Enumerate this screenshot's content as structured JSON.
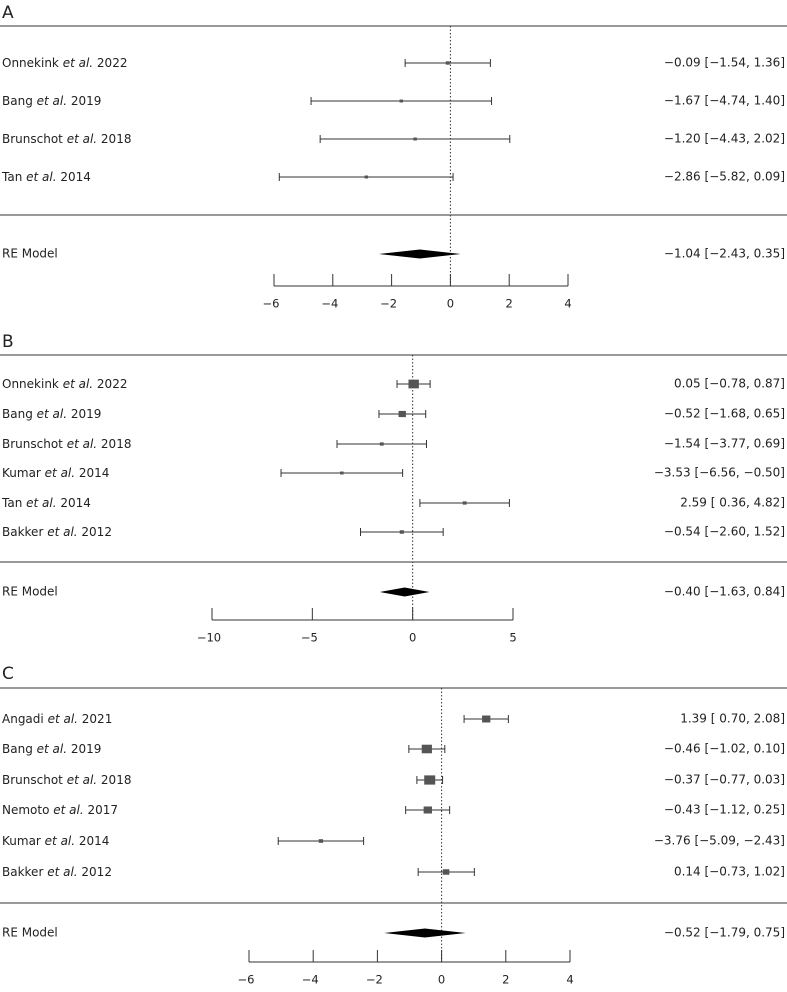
{
  "chart_data": [
    {
      "type": "forest",
      "panel": "A",
      "xlim": [
        -6,
        4
      ],
      "ticks": [
        -6,
        -4,
        -2,
        0,
        2,
        4
      ],
      "reference_line": 0,
      "studies": [
        {
          "author": "Onnekink",
          "suffix": " 2022",
          "estimate": -0.09,
          "lower": -1.54,
          "upper": 1.36,
          "ci_text": "−0.09 [−1.54, 1.36]"
        },
        {
          "author": "Bang",
          "suffix": " 2019",
          "estimate": -1.67,
          "lower": -4.74,
          "upper": 1.4,
          "ci_text": "−1.67 [−4.74, 1.40]"
        },
        {
          "author": "Brunschot",
          "suffix": " 2018",
          "estimate": -1.2,
          "lower": -4.43,
          "upper": 2.02,
          "ci_text": "−1.20 [−4.43, 2.02]"
        },
        {
          "author": "Tan",
          "suffix": " 2014",
          "estimate": -2.86,
          "lower": -5.82,
          "upper": 0.09,
          "ci_text": "−2.86 [−5.82, 0.09]"
        }
      ],
      "summary": {
        "label": "RE Model",
        "estimate": -1.04,
        "lower": -2.43,
        "upper": 0.35,
        "ci_text": "−1.04 [−2.43, 0.35]"
      }
    },
    {
      "type": "forest",
      "panel": "B",
      "xlim": [
        -10,
        5
      ],
      "ticks": [
        -10,
        -5,
        0,
        5
      ],
      "reference_line": 0,
      "studies": [
        {
          "author": "Onnekink",
          "suffix": " 2022",
          "estimate": 0.05,
          "lower": -0.78,
          "upper": 0.87,
          "ci_text": "0.05 [−0.78, 0.87]"
        },
        {
          "author": "Bang",
          "suffix": " 2019",
          "estimate": -0.52,
          "lower": -1.68,
          "upper": 0.65,
          "ci_text": "−0.52 [−1.68, 0.65]"
        },
        {
          "author": "Brunschot",
          "suffix": " 2018",
          "estimate": -1.54,
          "lower": -3.77,
          "upper": 0.69,
          "ci_text": "−1.54 [−3.77, 0.69]"
        },
        {
          "author": "Kumar",
          "suffix": " 2014",
          "estimate": -3.53,
          "lower": -6.56,
          "upper": -0.5,
          "ci_text": "−3.53 [−6.56, −0.50]"
        },
        {
          "author": "Tan",
          "suffix": " 2014",
          "estimate": 2.59,
          "lower": 0.36,
          "upper": 4.82,
          "ci_text": "2.59 [ 0.36, 4.82]"
        },
        {
          "author": "Bakker",
          "suffix": " 2012",
          "estimate": -0.54,
          "lower": -2.6,
          "upper": 1.52,
          "ci_text": "−0.54 [−2.60, 1.52]"
        }
      ],
      "summary": {
        "label": "RE Model",
        "estimate": -0.4,
        "lower": -1.63,
        "upper": 0.84,
        "ci_text": "−0.40 [−1.63, 0.84]"
      }
    },
    {
      "type": "forest",
      "panel": "C",
      "xlim": [
        -6,
        4
      ],
      "ticks": [
        -6,
        -4,
        -2,
        0,
        2,
        4
      ],
      "reference_line": 0,
      "studies": [
        {
          "author": "Angadi",
          "suffix": " 2021",
          "estimate": 1.39,
          "lower": 0.7,
          "upper": 2.08,
          "ci_text": "1.39 [ 0.70, 2.08]"
        },
        {
          "author": "Bang",
          "suffix": " 2019",
          "estimate": -0.46,
          "lower": -1.02,
          "upper": 0.1,
          "ci_text": "−0.46 [−1.02, 0.10]"
        },
        {
          "author": "Brunschot",
          "suffix": " 2018",
          "estimate": -0.37,
          "lower": -0.77,
          "upper": 0.03,
          "ci_text": "−0.37 [−0.77, 0.03]"
        },
        {
          "author": "Nemoto",
          "suffix": " 2017",
          "estimate": -0.43,
          "lower": -1.12,
          "upper": 0.25,
          "ci_text": "−0.43 [−1.12, 0.25]"
        },
        {
          "author": "Kumar",
          "suffix": " 2014",
          "estimate": -3.76,
          "lower": -5.09,
          "upper": -2.43,
          "ci_text": "−3.76 [−5.09, −2.43]"
        },
        {
          "author": "Bakker",
          "suffix": " 2012",
          "estimate": 0.14,
          "lower": -0.73,
          "upper": 1.02,
          "ci_text": "0.14 [−0.73, 1.02]"
        }
      ],
      "summary": {
        "label": "RE Model",
        "estimate": -0.52,
        "lower": -1.79,
        "upper": 0.75,
        "ci_text": "−0.52 [−1.79, 0.75]"
      }
    }
  ],
  "et_al_text": "et al.",
  "colors": {
    "marker": "#555555",
    "line": "#333333",
    "summary": "#000000"
  }
}
